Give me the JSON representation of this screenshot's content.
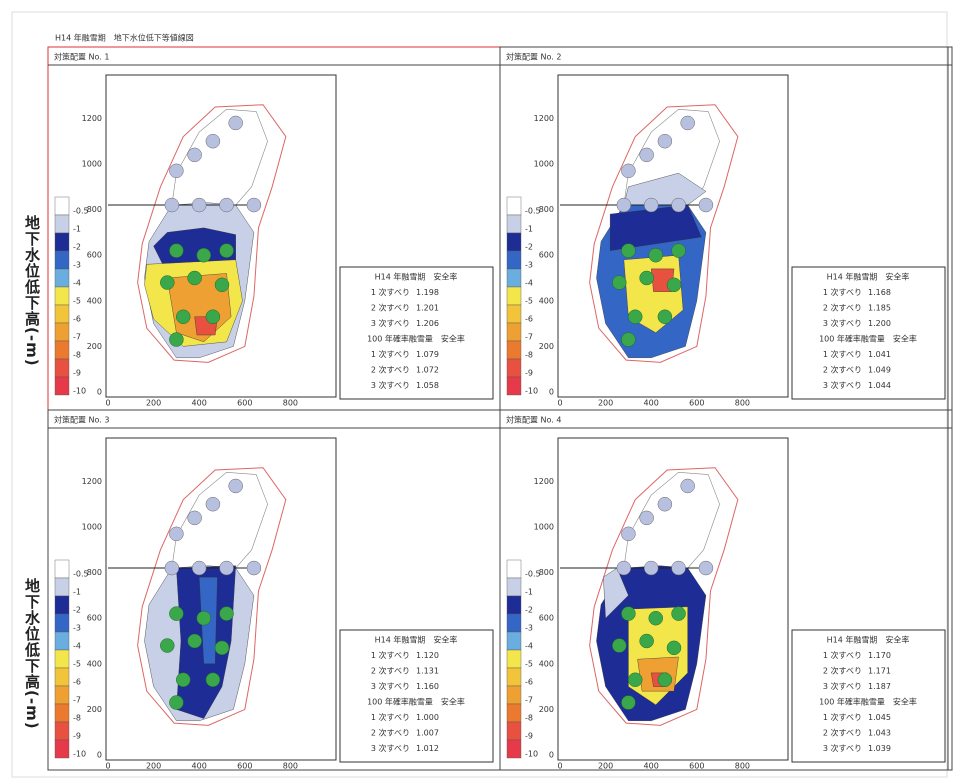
{
  "title": "H14 年融雪期　地下水位低下等値線図",
  "side_label": "地下水位低下高(-m)",
  "axes": {
    "xticks": [
      "0",
      "200",
      "400",
      "600",
      "800"
    ],
    "yticks": [
      "0",
      "200",
      "400",
      "600",
      "800",
      "1000",
      "1200"
    ],
    "legend": [
      "-0.5",
      "-1",
      "-2",
      "-3",
      "-4",
      "-5",
      "-6",
      "-7",
      "-8",
      "-9",
      "-10"
    ]
  },
  "panels": [
    {
      "title": "対策配置 No. 1",
      "sections": [
        {
          "heading": "H14 年融雪期　安全率",
          "rows": [
            [
              "1 次すべり",
              "1.198"
            ],
            [
              "2 次すべり",
              "1.201"
            ],
            [
              "3 次すべり",
              "1.206"
            ]
          ]
        },
        {
          "heading": "100 年確率融雪量　安全率",
          "rows": [
            [
              "1 次すべり",
              "1.079"
            ],
            [
              "2 次すべり",
              "1.072"
            ],
            [
              "3 次すべり",
              "1.058"
            ]
          ]
        }
      ]
    },
    {
      "title": "対策配置 No. 2",
      "sections": [
        {
          "heading": "H14 年融雪期　安全率",
          "rows": [
            [
              "1 次すべり",
              "1.168"
            ],
            [
              "2 次すべり",
              "1.185"
            ],
            [
              "3 次すべり",
              "1.200"
            ]
          ]
        },
        {
          "heading": "100 年確率融雪量　安全率",
          "rows": [
            [
              "1 次すべり",
              "1.041"
            ],
            [
              "2 次すべり",
              "1.049"
            ],
            [
              "3 次すべり",
              "1.044"
            ]
          ]
        }
      ]
    },
    {
      "title": "対策配置 No. 3",
      "sections": [
        {
          "heading": "H14 年融雪期　安全率",
          "rows": [
            [
              "1 次すべり",
              "1.120"
            ],
            [
              "2 次すべり",
              "1.131"
            ],
            [
              "3 次すべり",
              "1.160"
            ]
          ]
        },
        {
          "heading": "100 年確率融雪量　安全率",
          "rows": [
            [
              "1 次すべり",
              "1.000"
            ],
            [
              "2 次すべり",
              "1.007"
            ],
            [
              "3 次すべり",
              "1.012"
            ]
          ]
        }
      ]
    },
    {
      "title": "対策配置 No. 4",
      "sections": [
        {
          "heading": "H14 年融雪期　安全率",
          "rows": [
            [
              "1 次すべり",
              "1.170"
            ],
            [
              "2 次すべり",
              "1.171"
            ],
            [
              "3 次すべり",
              "1.187"
            ]
          ]
        },
        {
          "heading": "100 年確率融雪量　安全率",
          "rows": [
            [
              "1 次すべり",
              "1.045"
            ],
            [
              "2 次すべり",
              "1.043"
            ],
            [
              "3 次すべり",
              "1.039"
            ]
          ]
        }
      ]
    }
  ]
}
